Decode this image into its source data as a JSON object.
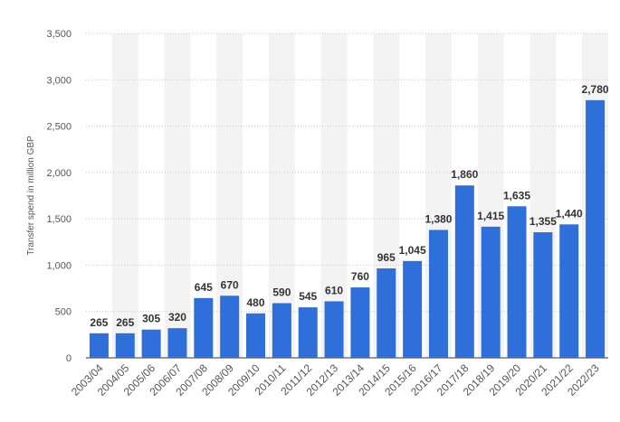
{
  "chart_data": {
    "type": "bar",
    "title": "",
    "xlabel": "",
    "ylabel": "Transfer spend in million GBP",
    "ylim": [
      0,
      3500
    ],
    "yticks": [
      0,
      500,
      1000,
      1500,
      2000,
      2500,
      3000,
      3500
    ],
    "ytick_labels": [
      "0",
      "500",
      "1,000",
      "1,500",
      "2,000",
      "2,500",
      "3,000",
      "3,500"
    ],
    "grid": true,
    "bar_color": "#2f6fd9",
    "band_color": "#f3f3f3",
    "categories": [
      "2003/04",
      "2004/05",
      "2005/06",
      "2006/07",
      "2007/08",
      "2008/09",
      "2009/10",
      "2010/11",
      "2011/12",
      "2012/13",
      "2013/14",
      "2014/15",
      "2015/16",
      "2016/17",
      "2017/18",
      "2018/19",
      "2019/20",
      "2020/21",
      "2021/22",
      "2022/23"
    ],
    "values": [
      265,
      265,
      305,
      320,
      645,
      670,
      480,
      590,
      545,
      610,
      760,
      965,
      1045,
      1380,
      1860,
      1415,
      1635,
      1355,
      1440,
      2780
    ],
    "value_labels": [
      "265",
      "265",
      "305",
      "320",
      "645",
      "670",
      "480",
      "590",
      "545",
      "610",
      "760",
      "965",
      "1,045",
      "1,380",
      "1,860",
      "1,415",
      "1,635",
      "1,355",
      "1,440",
      "2,780"
    ]
  }
}
